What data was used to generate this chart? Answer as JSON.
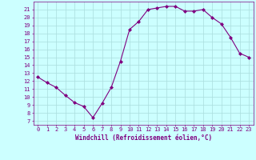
{
  "x": [
    0,
    1,
    2,
    3,
    4,
    5,
    6,
    7,
    8,
    9,
    10,
    11,
    12,
    13,
    14,
    15,
    16,
    17,
    18,
    19,
    20,
    21,
    22,
    23
  ],
  "y": [
    12.5,
    11.8,
    11.2,
    10.2,
    9.3,
    8.8,
    7.4,
    9.2,
    11.2,
    14.5,
    18.5,
    19.5,
    21.0,
    21.2,
    21.4,
    21.4,
    20.8,
    20.8,
    21.0,
    20.0,
    19.2,
    17.5,
    15.5,
    15.0
  ],
  "line_color": "#800080",
  "marker": "D",
  "marker_size": 2,
  "background_color": "#ccffff",
  "grid_color": "#aadddd",
  "yticks": [
    7,
    8,
    9,
    10,
    11,
    12,
    13,
    14,
    15,
    16,
    17,
    18,
    19,
    20,
    21
  ],
  "ylim": [
    6.5,
    22.0
  ],
  "xlim": [
    -0.5,
    23.5
  ],
  "xlabel": "Windchill (Refroidissement éolien,°C)",
  "color": "#800080",
  "tick_fontsize": 5,
  "xlabel_fontsize": 5.5
}
